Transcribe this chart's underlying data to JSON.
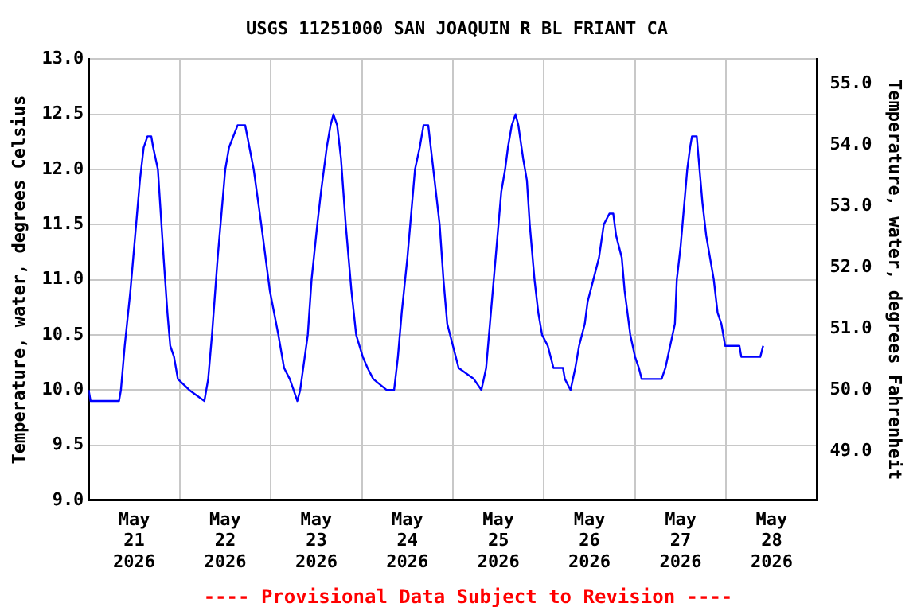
{
  "chart_data": {
    "type": "line",
    "title": "USGS 11251000 SAN JOAQUIN R BL FRIANT CA",
    "ylabel": "Temperature, water, degrees Celsius",
    "y2label": "Temperature, water, degrees Fahrenheit",
    "annotations": [
      "---- Provisional Data Subject to Revision ----"
    ],
    "x": [
      "2026-05-21T00:00",
      "2026-05-21T00:30",
      "2026-05-21T08:00",
      "2026-05-21T08:30",
      "2026-05-21T09:30",
      "2026-05-21T11:00",
      "2026-05-21T12:30",
      "2026-05-21T13:30",
      "2026-05-21T14:30",
      "2026-05-21T15:30",
      "2026-05-21T16:30",
      "2026-05-21T17:00",
      "2026-05-21T18:15",
      "2026-05-21T19:00",
      "2026-05-21T19:45",
      "2026-05-21T20:45",
      "2026-05-21T21:30",
      "2026-05-21T22:30",
      "2026-05-21T23:30",
      "2026-05-22T02:30",
      "2026-05-22T06:30",
      "2026-05-22T07:30",
      "2026-05-22T08:30",
      "2026-05-22T10:00",
      "2026-05-22T11:15",
      "2026-05-22T12:00",
      "2026-05-22T13:00",
      "2026-05-22T15:15",
      "2026-05-22T17:15",
      "2026-05-22T19:30",
      "2026-05-22T21:30",
      "2026-05-22T23:45",
      "2026-05-23T02:00",
      "2026-05-23T03:30",
      "2026-05-23T05:00",
      "2026-05-23T06:00",
      "2026-05-23T07:00",
      "2026-05-23T07:45",
      "2026-05-23T09:45",
      "2026-05-23T10:45",
      "2026-05-23T12:15",
      "2026-05-23T13:15",
      "2026-05-23T14:45",
      "2026-05-23T15:45",
      "2026-05-23T16:30",
      "2026-05-23T17:30",
      "2026-05-23T18:30",
      "2026-05-23T19:45",
      "2026-05-23T21:15",
      "2026-05-23T22:30",
      "2026-05-24T00:15",
      "2026-05-24T01:30",
      "2026-05-24T03:00",
      "2026-05-24T06:30",
      "2026-05-24T08:30",
      "2026-05-24T09:30",
      "2026-05-24T10:30",
      "2026-05-24T12:00",
      "2026-05-24T13:00",
      "2026-05-24T14:00",
      "2026-05-24T15:15",
      "2026-05-24T16:15",
      "2026-05-24T17:30",
      "2026-05-24T18:30",
      "2026-05-24T19:30",
      "2026-05-24T20:30",
      "2026-05-24T21:30",
      "2026-05-24T22:30",
      "2026-05-25T00:00",
      "2026-05-25T01:30",
      "2026-05-25T05:30",
      "2026-05-25T07:30",
      "2026-05-25T08:45",
      "2026-05-25T09:30",
      "2026-05-25T10:45",
      "2026-05-25T11:45",
      "2026-05-25T12:45",
      "2026-05-25T13:45",
      "2026-05-25T14:30",
      "2026-05-25T15:30",
      "2026-05-25T16:30",
      "2026-05-25T17:15",
      "2026-05-25T18:30",
      "2026-05-25T19:30",
      "2026-05-25T20:15",
      "2026-05-25T21:30",
      "2026-05-25T22:30",
      "2026-05-25T23:30",
      "2026-05-26T01:00",
      "2026-05-26T02:30",
      "2026-05-26T05:00",
      "2026-05-26T05:30",
      "2026-05-26T07:00",
      "2026-05-26T08:15",
      "2026-05-26T09:15",
      "2026-05-26T10:45",
      "2026-05-26T11:30",
      "2026-05-26T13:00",
      "2026-05-26T14:30",
      "2026-05-26T15:45",
      "2026-05-26T17:15",
      "2026-05-26T18:15",
      "2026-05-26T19:00",
      "2026-05-26T20:30",
      "2026-05-26T21:15",
      "2026-05-26T22:45",
      "2026-05-27T00:00",
      "2026-05-27T01:00",
      "2026-05-27T01:45",
      "2026-05-27T07:00",
      "2026-05-27T08:00",
      "2026-05-27T09:15",
      "2026-05-27T10:30",
      "2026-05-27T11:00",
      "2026-05-27T12:00",
      "2026-05-27T12:45",
      "2026-05-27T13:45",
      "2026-05-27T14:30",
      "2026-05-27T15:00",
      "2026-05-27T16:15",
      "2026-05-27T17:00",
      "2026-05-27T17:45",
      "2026-05-27T18:45",
      "2026-05-27T19:45",
      "2026-05-27T20:45",
      "2026-05-27T21:45",
      "2026-05-27T22:45",
      "2026-05-27T23:45",
      "2026-05-28T03:30",
      "2026-05-28T04:00",
      "2026-05-28T09:00",
      "2026-05-28T09:45"
    ],
    "series": [
      {
        "color": "#0000ff",
        "values": [
          10.0,
          9.9,
          9.9,
          10.0,
          10.4,
          10.9,
          11.5,
          11.9,
          12.2,
          12.3,
          12.3,
          12.2,
          12.0,
          11.6,
          11.2,
          10.7,
          10.4,
          10.3,
          10.1,
          10.0,
          9.9,
          10.1,
          10.5,
          11.2,
          11.7,
          12.0,
          12.2,
          12.4,
          12.4,
          12.0,
          11.5,
          10.9,
          10.5,
          10.2,
          10.1,
          10.0,
          9.9,
          10.0,
          10.5,
          11.0,
          11.5,
          11.8,
          12.2,
          12.4,
          12.5,
          12.4,
          12.1,
          11.5,
          10.9,
          10.5,
          10.3,
          10.2,
          10.1,
          10.0,
          10.0,
          10.3,
          10.7,
          11.2,
          11.6,
          12.0,
          12.2,
          12.4,
          12.4,
          12.1,
          11.8,
          11.5,
          11.0,
          10.6,
          10.4,
          10.2,
          10.1,
          10.0,
          10.2,
          10.5,
          11.0,
          11.4,
          11.8,
          12.0,
          12.2,
          12.4,
          12.5,
          12.4,
          12.1,
          11.9,
          11.5,
          11.0,
          10.7,
          10.5,
          10.4,
          10.2,
          10.2,
          10.1,
          10.0,
          10.2,
          10.4,
          10.6,
          10.8,
          11.0,
          11.2,
          11.5,
          11.6,
          11.6,
          11.4,
          11.2,
          10.9,
          10.5,
          10.3,
          10.2,
          10.1,
          10.1,
          10.2,
          10.4,
          10.6,
          11.0,
          11.3,
          11.6,
          12.0,
          12.2,
          12.3,
          12.3,
          12.0,
          11.7,
          11.4,
          11.2,
          11.0,
          10.7,
          10.6,
          10.4,
          10.4,
          10.3,
          10.3,
          10.4
        ]
      }
    ],
    "xlim": [
      "2026-05-21T00:00",
      "2026-05-29T00:00"
    ],
    "xticks": [
      {
        "value": "2026-05-21T12:00",
        "label": "May 21 2026"
      },
      {
        "value": "2026-05-22T00:00",
        "label": null
      },
      {
        "value": "2026-05-22T12:00",
        "label": "May 22 2026"
      },
      {
        "value": "2026-05-23T00:00",
        "label": null
      },
      {
        "value": "2026-05-23T12:00",
        "label": "May 23 2026"
      },
      {
        "value": "2026-05-24T00:00",
        "label": null
      },
      {
        "value": "2026-05-24T12:00",
        "label": "May 24 2026"
      },
      {
        "value": "2026-05-25T00:00",
        "label": null
      },
      {
        "value": "2026-05-25T12:00",
        "label": "May 25 2026"
      },
      {
        "value": "2026-05-26T00:00",
        "label": null
      },
      {
        "value": "2026-05-26T12:00",
        "label": "May 26 2026"
      },
      {
        "value": "2026-05-27T00:00",
        "label": null
      },
      {
        "value": "2026-05-27T12:00",
        "label": "May 27 2026"
      },
      {
        "value": "2026-05-28T00:00",
        "label": null
      },
      {
        "value": "2026-05-28T12:00",
        "label": "May 28 2026"
      }
    ],
    "ylim": [
      9.0,
      13.0
    ],
    "yticks": [
      {
        "value": 9.0,
        "label": "9.0"
      },
      {
        "value": 9.5,
        "label": "9.5"
      },
      {
        "value": 10.0,
        "label": "10.0"
      },
      {
        "value": 10.5,
        "label": "10.5"
      },
      {
        "value": 11.0,
        "label": "11.0"
      },
      {
        "value": 11.5,
        "label": "11.5"
      },
      {
        "value": 12.0,
        "label": "12.0"
      },
      {
        "value": 12.5,
        "label": "12.5"
      },
      {
        "value": 13.0,
        "label": "13.0"
      }
    ],
    "y2lim": [
      48.2,
      55.4
    ],
    "y2ticks": [
      {
        "value": 49,
        "label": "49.0"
      },
      {
        "value": 50,
        "label": "50.0"
      },
      {
        "value": 51,
        "label": "51.0"
      },
      {
        "value": 52,
        "label": "52.0"
      },
      {
        "value": 53,
        "label": "53.0"
      },
      {
        "value": 54,
        "label": "54.0"
      },
      {
        "value": 55,
        "label": "55.0"
      }
    ],
    "grid": true,
    "legend": false,
    "marker": "none",
    "line_style": "solid"
  }
}
